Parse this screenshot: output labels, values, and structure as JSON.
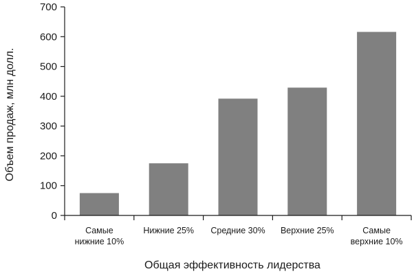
{
  "chart_data": {
    "type": "bar",
    "categories": [
      [
        "Самые",
        "нижние 10%"
      ],
      [
        "Нижние 25%"
      ],
      [
        "Средние 30%"
      ],
      [
        "Верхние 25%"
      ],
      [
        "Самые",
        "верхние 10%"
      ]
    ],
    "values": [
      75,
      175,
      392,
      429,
      616
    ],
    "title": "",
    "xlabel": "Общая эффективность лидерства",
    "ylabel": "Объем продаж, млн долл.",
    "ylim": [
      0,
      700
    ],
    "yticks": [
      "0",
      "100",
      "200",
      "300",
      "400",
      "500",
      "600",
      "700"
    ],
    "grid": false,
    "bar_color": "#808080",
    "axis_color": "#1a1a1a"
  }
}
